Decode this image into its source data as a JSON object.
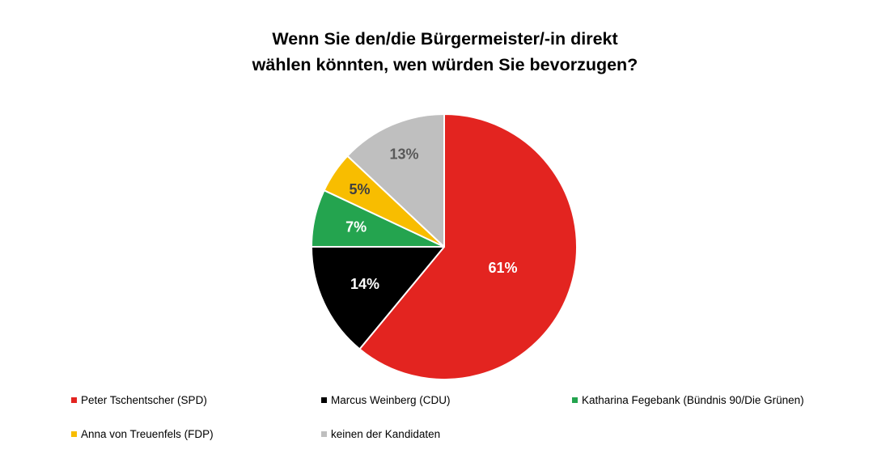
{
  "chart_data": {
    "type": "pie",
    "title": [
      "Wenn Sie den/die Bürgermeister/-in direkt",
      "wählen könnten, wen würden Sie bevorzugen?"
    ],
    "legend_position": "bottom",
    "slices": [
      {
        "label": "Peter Tschentscher (SPD)",
        "value": 61,
        "data_label": "61%",
        "color": "#E32420",
        "label_color": "#FFFFFF"
      },
      {
        "label": "Marcus Weinberg (CDU)",
        "value": 14,
        "data_label": "14%",
        "color": "#000000",
        "label_color": "#FFFFFF"
      },
      {
        "label": "Katharina Fegebank (Bündnis 90/Die Grünen)",
        "value": 7,
        "data_label": "7%",
        "color": "#24A44F",
        "label_color": "#FFFFFF"
      },
      {
        "label": "Anna von Treuenfels (FDP)",
        "value": 5,
        "data_label": "5%",
        "color": "#F8BD00",
        "label_color": "#404040"
      },
      {
        "label": "keinen der Kandidaten",
        "value": 13,
        "data_label": "13%",
        "color": "#BFBFBF",
        "label_color": "#595959"
      }
    ]
  }
}
